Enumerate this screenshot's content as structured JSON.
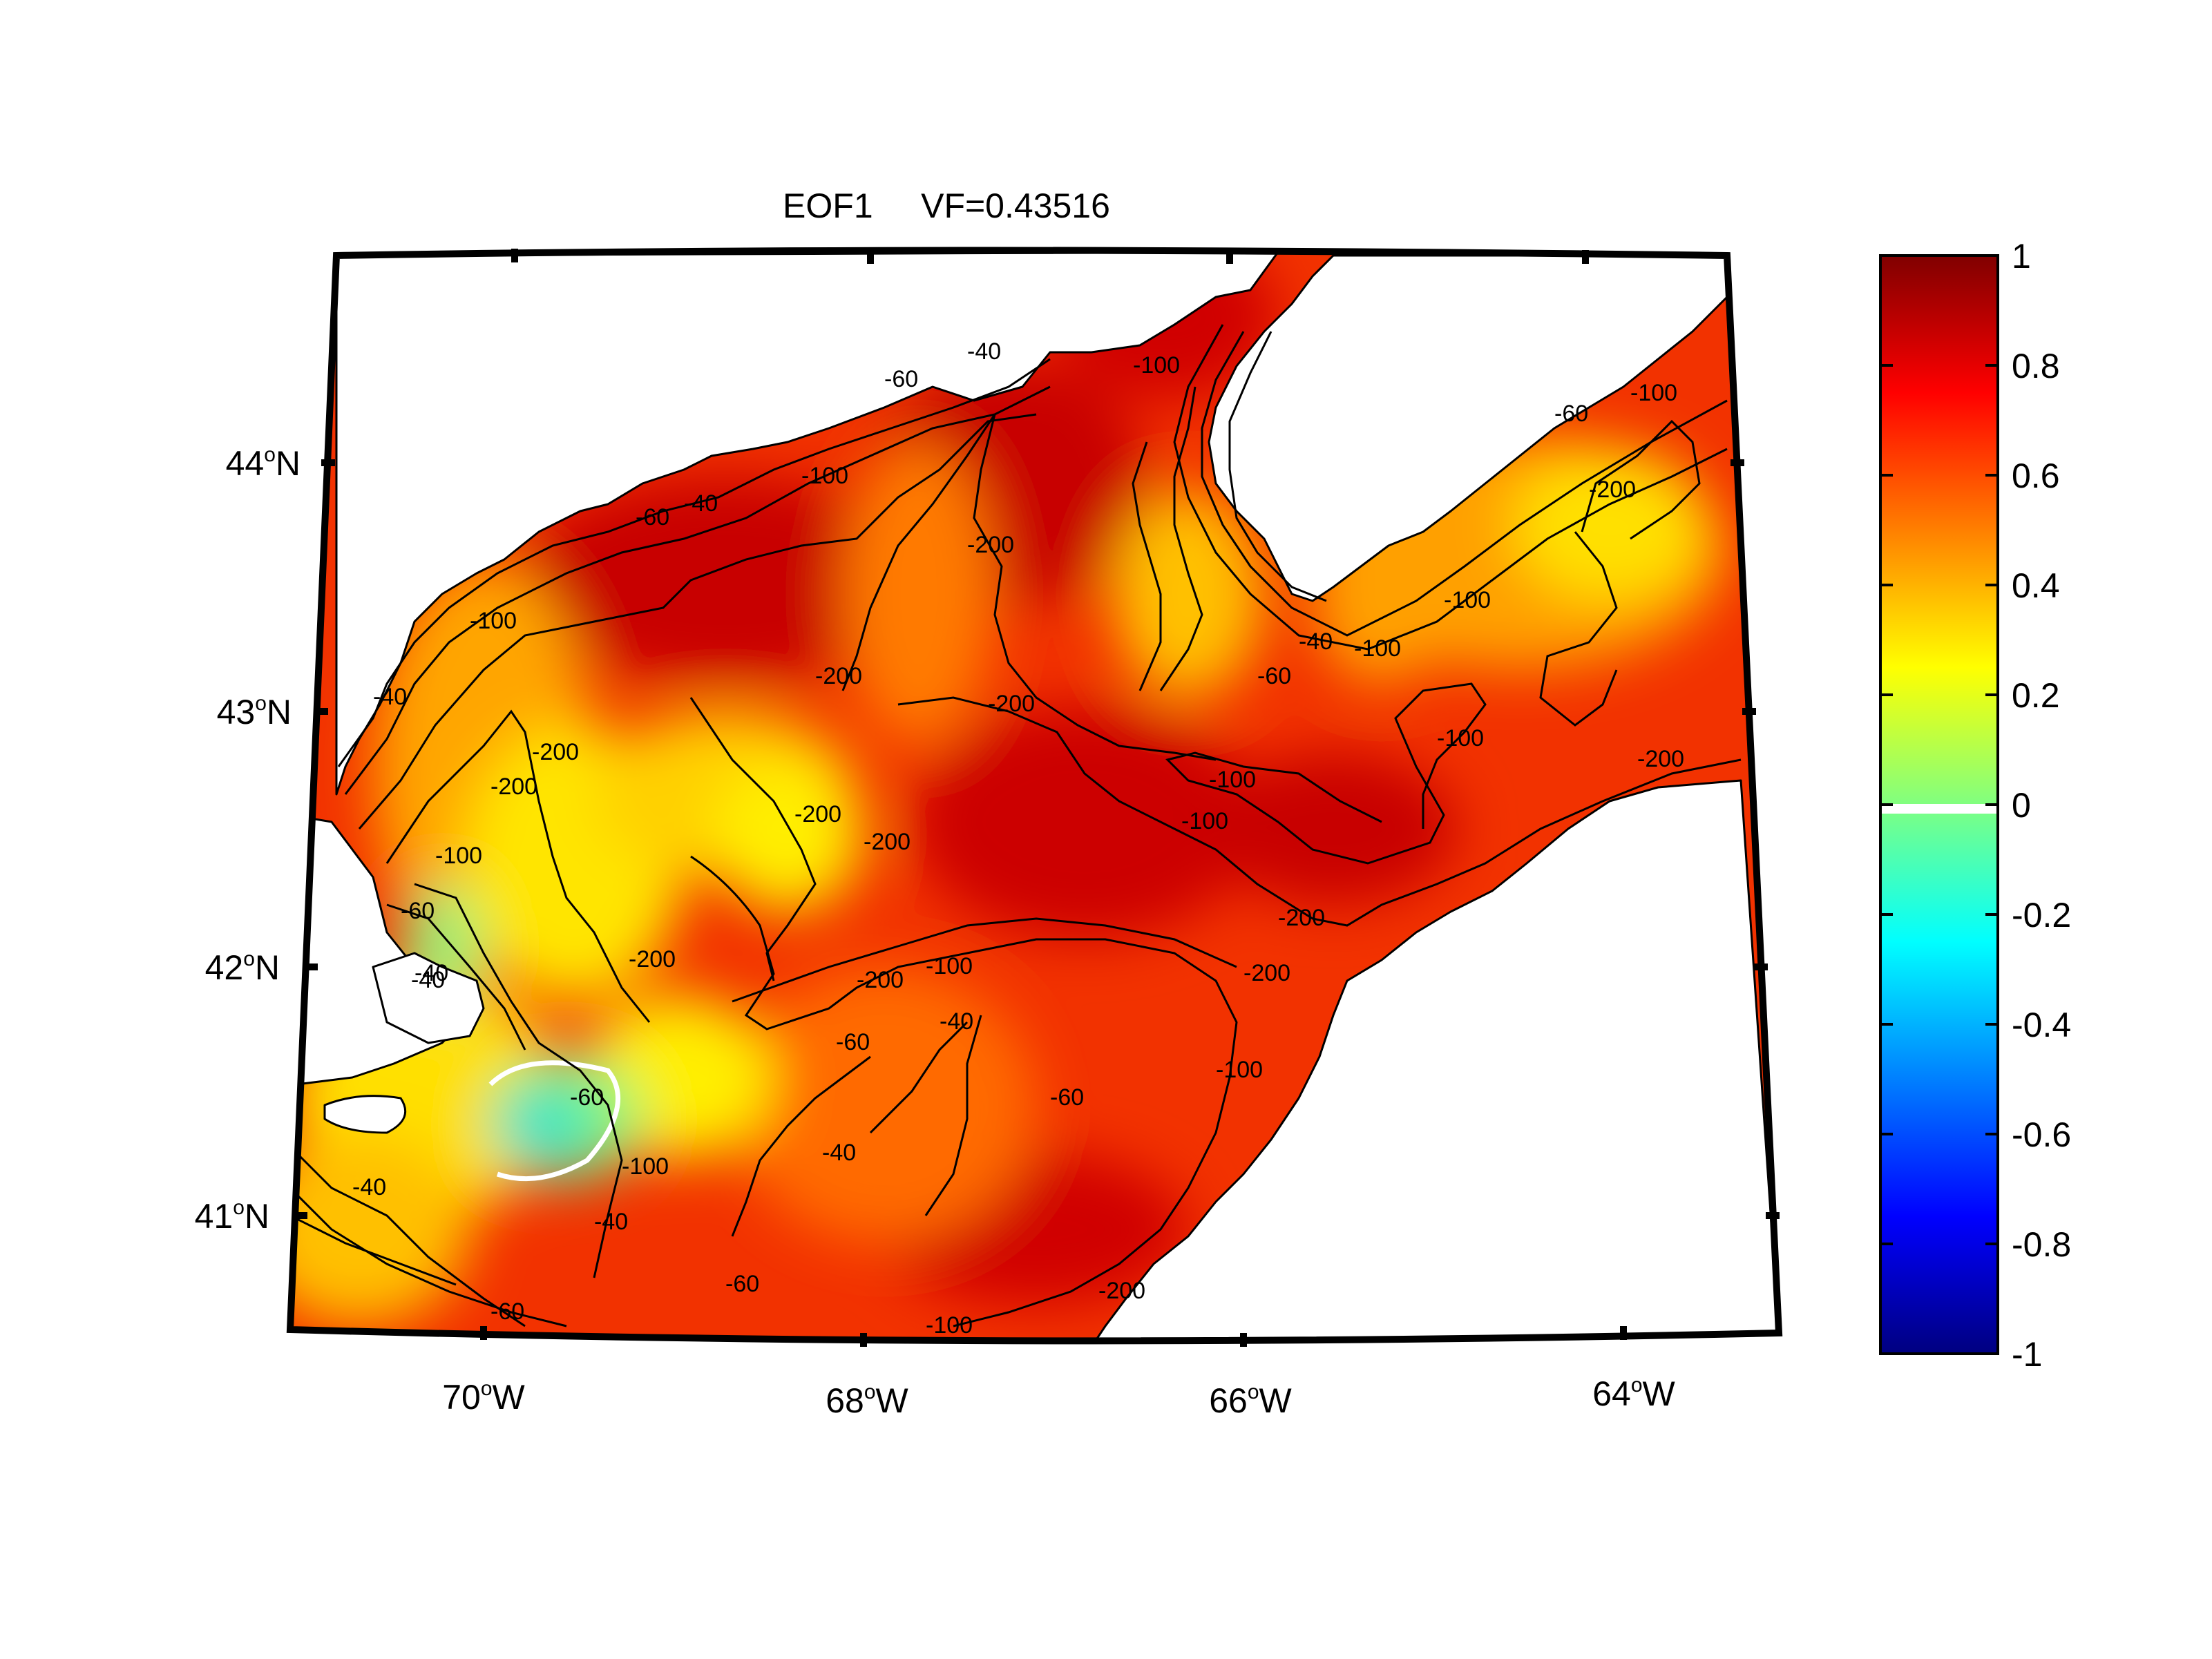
{
  "title": "EOF1     VF=0.43516",
  "map": {
    "longitude_labels": [
      {
        "deg": "70",
        "sup": "o",
        "hemi": "W"
      },
      {
        "deg": "68",
        "sup": "o",
        "hemi": "W"
      },
      {
        "deg": "66",
        "sup": "o",
        "hemi": "W"
      },
      {
        "deg": "64",
        "sup": "o",
        "hemi": "W"
      }
    ],
    "latitude_labels": [
      {
        "deg": "44",
        "sup": "o",
        "hemi": "N"
      },
      {
        "deg": "43",
        "sup": "o",
        "hemi": "N"
      },
      {
        "deg": "42",
        "sup": "o",
        "hemi": "N"
      },
      {
        "deg": "41",
        "sup": "o",
        "hemi": "N"
      }
    ],
    "contour_labels": [
      "-60",
      "-40",
      "-100",
      "-60",
      "-40",
      "-100",
      "-100",
      "-60",
      "-60",
      "-100",
      "-40",
      "-40",
      "-100",
      "-100",
      "-200",
      "-200",
      "-200",
      "-200",
      "-200",
      "-200",
      "-200",
      "-200",
      "-200",
      "-200",
      "-100",
      "-100",
      "-200",
      "-100",
      "-60",
      "-40",
      "-60",
      "-40",
      "-40",
      "-60",
      "-100",
      "-40",
      "-60",
      "-200",
      "-100",
      "-60",
      "-40",
      "-60",
      "-40",
      "-100",
      "-100",
      "-200",
      "-100",
      "-200"
    ],
    "colors": {
      "land": "#ffffff",
      "coast": "#000000",
      "dark_red": "#c80000",
      "red": "#e81c00",
      "orange": "#ff7a00",
      "yellow": "#ffee00",
      "green": "#7ef57e",
      "cyan": "#3ae3c8"
    }
  },
  "colorbar": {
    "labels": [
      "1",
      "0.8",
      "0.6",
      "0.4",
      "0.2",
      "0",
      "-0.2",
      "-0.4",
      "-0.6",
      "-0.8",
      "-1"
    ],
    "range": [
      -1,
      1
    ],
    "colormap": "jet"
  }
}
